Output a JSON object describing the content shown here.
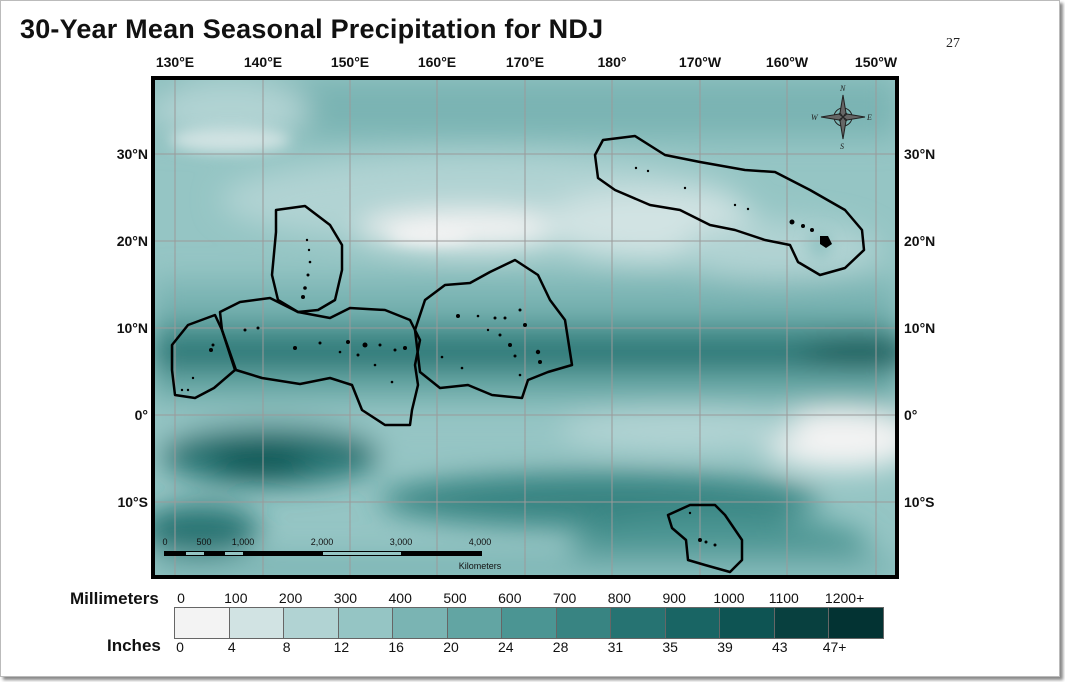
{
  "title": "30-Year Mean Seasonal Precipitation for NDJ",
  "page_number": "27",
  "map": {
    "longitude_labels": [
      "130°E",
      "140°E",
      "150°E",
      "160°E",
      "170°E",
      "180°",
      "170°W",
      "160°W",
      "150°W"
    ],
    "latitude_labels": [
      "30°N",
      "20°N",
      "10°N",
      "0°",
      "10°S"
    ],
    "compass": {
      "icon": "compass-rose-icon",
      "letters": [
        "N",
        "E",
        "S",
        "W"
      ]
    },
    "scale_bar": {
      "ticks": [
        "0",
        "500",
        "1,000",
        "2,000",
        "3,000",
        "4,000"
      ],
      "unit": "Kilometers"
    }
  },
  "legend": {
    "mm_label": "Millimeters",
    "inches_label": "Inches",
    "mm_ticks": [
      "0",
      "100",
      "200",
      "300",
      "400",
      "500",
      "600",
      "700",
      "800",
      "900",
      "1000",
      "1100",
      "1200+"
    ],
    "inch_ticks": [
      "0",
      "4",
      "8",
      "12",
      "16",
      "20",
      "24",
      "28",
      "31",
      "35",
      "39",
      "43",
      "47+"
    ],
    "colors": [
      "#f3f3f3",
      "#d1e3e3",
      "#b1d3d3",
      "#95c5c4",
      "#7ab4b3",
      "#62a5a3",
      "#4b9593",
      "#388482",
      "#267372",
      "#196564",
      "#0e5453",
      "#08403f",
      "#033333"
    ]
  }
}
